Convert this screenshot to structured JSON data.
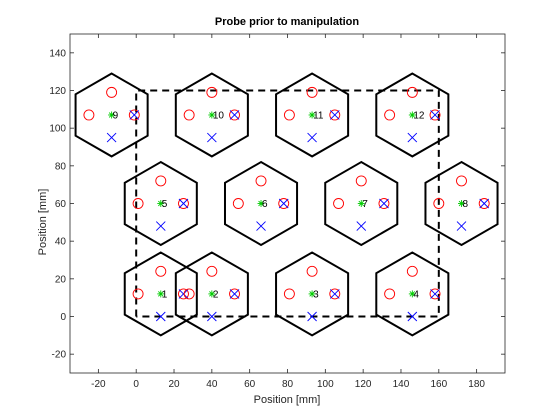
{
  "chart_data": {
    "type": "scatter",
    "title": "Probe prior to manipulation",
    "xlabel": "Position [mm]",
    "ylabel": "Position [mm]",
    "xlim": [
      -35,
      195
    ],
    "ylim": [
      -30,
      150
    ],
    "xticks": [
      -20,
      0,
      20,
      40,
      60,
      80,
      100,
      120,
      140,
      160,
      180
    ],
    "yticks": [
      -20,
      0,
      20,
      40,
      60,
      80,
      100,
      120,
      140
    ],
    "grid": false,
    "colors": {
      "hexagon": "#000000",
      "circle": "#ff0000",
      "cross": "#0000ff",
      "center": "#00cc00",
      "boundary": "#000000"
    },
    "hex_radius": 22,
    "marker_offset": 12,
    "hexagons": [
      {
        "label": "1",
        "center": [
          13,
          12
        ]
      },
      {
        "label": "2",
        "center": [
          40,
          12
        ]
      },
      {
        "label": "3",
        "center": [
          93,
          12
        ]
      },
      {
        "label": "4",
        "center": [
          146,
          12
        ]
      },
      {
        "label": "5",
        "center": [
          13,
          60
        ]
      },
      {
        "label": "6",
        "center": [
          66,
          60
        ]
      },
      {
        "label": "7",
        "center": [
          119,
          60
        ]
      },
      {
        "label": "8",
        "center": [
          172,
          60
        ]
      },
      {
        "label": "9",
        "center": [
          -13,
          107
        ]
      },
      {
        "label": "10",
        "center": [
          40,
          107
        ]
      },
      {
        "label": "11",
        "center": [
          93,
          107
        ]
      },
      {
        "label": "12",
        "center": [
          146,
          107
        ]
      }
    ],
    "boundary": [
      [
        0,
        0
      ],
      [
        0,
        120
      ],
      [
        160,
        120
      ],
      [
        160,
        0
      ],
      [
        0,
        0
      ]
    ]
  }
}
